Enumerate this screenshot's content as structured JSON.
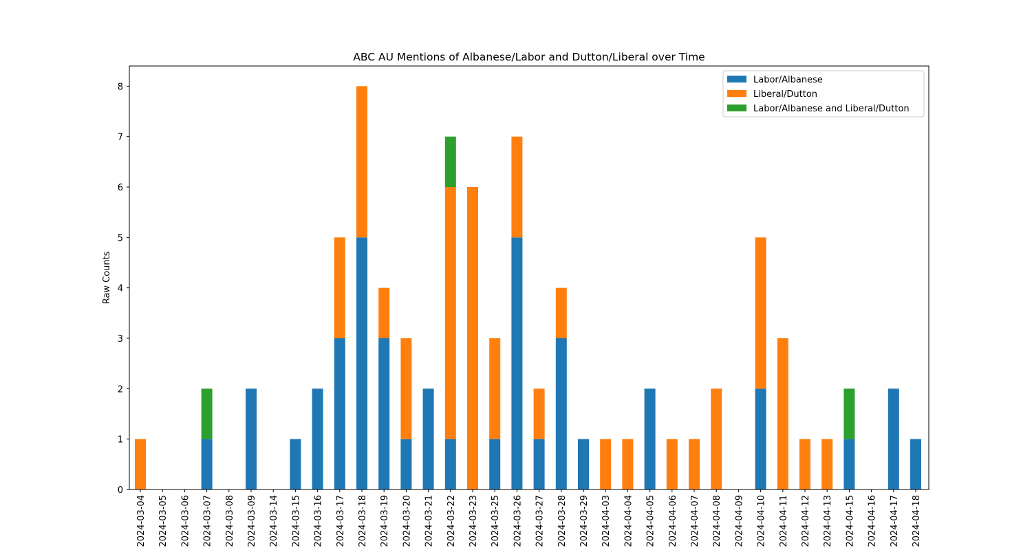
{
  "chart_data": {
    "type": "bar",
    "stacked": true,
    "title": "ABC AU Mentions of Albanese/Labor and Dutton/Liberal over Time",
    "xlabel": "",
    "ylabel": "Raw Counts",
    "ylim": [
      0,
      8.4
    ],
    "yticks": [
      0,
      1,
      2,
      3,
      4,
      5,
      6,
      7,
      8
    ],
    "grid": false,
    "legend_position": "top-right",
    "categories": [
      "2024-03-04",
      "2024-03-05",
      "2024-03-06",
      "2024-03-07",
      "2024-03-08",
      "2024-03-09",
      "2024-03-14",
      "2024-03-15",
      "2024-03-16",
      "2024-03-17",
      "2024-03-18",
      "2024-03-19",
      "2024-03-20",
      "2024-03-21",
      "2024-03-22",
      "2024-03-23",
      "2024-03-25",
      "2024-03-26",
      "2024-03-27",
      "2024-03-28",
      "2024-03-29",
      "2024-04-03",
      "2024-04-04",
      "2024-04-05",
      "2024-04-06",
      "2024-04-07",
      "2024-04-08",
      "2024-04-09",
      "2024-04-10",
      "2024-04-11",
      "2024-04-12",
      "2024-04-13",
      "2024-04-15",
      "2024-04-16",
      "2024-04-17",
      "2024-04-18"
    ],
    "series": [
      {
        "name": "Labor/Albanese",
        "color": "#1f77b4",
        "values": [
          0,
          0,
          0,
          1,
          0,
          2,
          0,
          1,
          2,
          3,
          5,
          3,
          1,
          2,
          1,
          0,
          1,
          5,
          1,
          3,
          1,
          0,
          0,
          2,
          0,
          0,
          0,
          0,
          2,
          0,
          0,
          0,
          1,
          0,
          2,
          1
        ]
      },
      {
        "name": "Liberal/Dutton",
        "color": "#ff7f0e",
        "values": [
          1,
          0,
          0,
          0,
          0,
          0,
          0,
          0,
          0,
          2,
          3,
          1,
          2,
          0,
          5,
          6,
          2,
          2,
          1,
          1,
          0,
          1,
          1,
          0,
          1,
          1,
          2,
          0,
          3,
          3,
          1,
          1,
          0,
          0,
          0,
          0
        ]
      },
      {
        "name": "Labor/Albanese and Liberal/Dutton",
        "color": "#2ca02c",
        "values": [
          0,
          0,
          0,
          1,
          0,
          0,
          0,
          0,
          0,
          0,
          0,
          0,
          0,
          0,
          1,
          0,
          0,
          0,
          0,
          0,
          0,
          0,
          0,
          0,
          0,
          0,
          0,
          0,
          0,
          0,
          0,
          0,
          1,
          0,
          0,
          0
        ]
      }
    ]
  }
}
